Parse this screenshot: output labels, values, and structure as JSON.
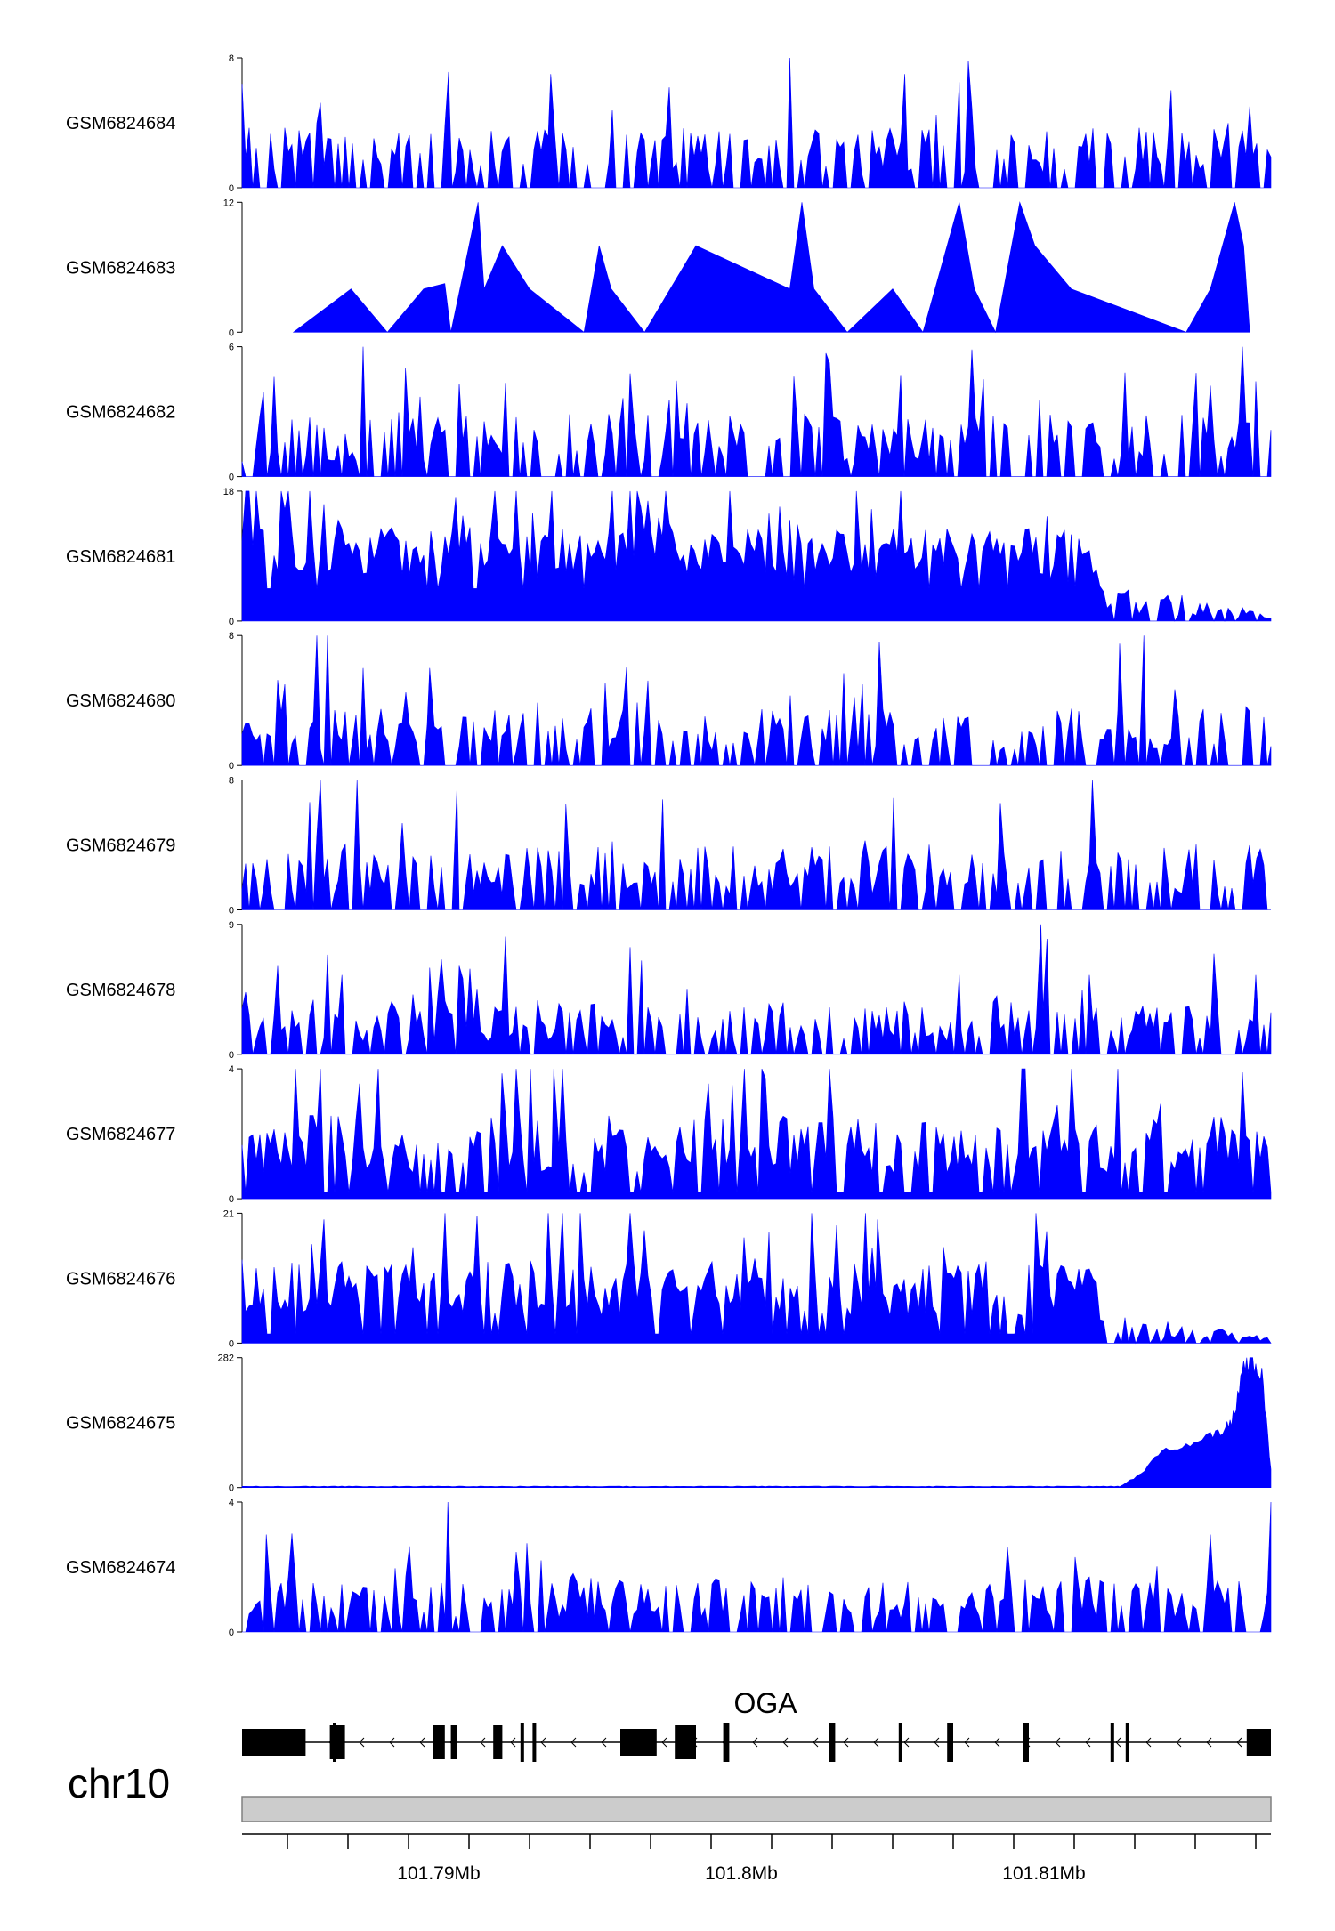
{
  "chart_data": {
    "type": "area",
    "style": {
      "fill_color": "#0000ff",
      "axis_color": "#000000",
      "ideogram_color": "#cccccc",
      "ideogram_border": "#808080"
    },
    "x_range": [
      101.7835,
      101.8175
    ],
    "x_ticks": [
      101.785,
      101.787,
      101.789,
      101.791,
      101.793,
      101.795,
      101.797,
      101.799,
      101.801,
      101.803,
      101.805,
      101.807,
      101.809,
      101.811,
      101.813,
      101.815,
      101.817
    ],
    "x_tick_labels": [
      {
        "x": 101.79,
        "label": "101.79Mb"
      },
      {
        "x": 101.8,
        "label": "101.8Mb"
      },
      {
        "x": 101.81,
        "label": "101.81Mb"
      }
    ],
    "tracks": [
      {
        "name": "GSM6824684",
        "ylim": [
          0,
          8
        ],
        "ytick_labels": [
          "0",
          "8"
        ],
        "profile": "sparse",
        "peaks": [
          [
            101.7937,
            7
          ],
          [
            101.8016,
            8
          ],
          [
            101.8054,
            7
          ],
          [
            101.8072,
            6.5
          ],
          [
            101.8142,
            6
          ],
          [
            101.8168,
            5
          ]
        ],
        "floor": 0,
        "density": 0.55,
        "mean": 2.2,
        "tail": null,
        "end_drop": false
      },
      {
        "name": "GSM6824683",
        "ylim": [
          0,
          12
        ],
        "ytick_labels": [
          "0",
          "12"
        ],
        "profile": "triangles",
        "coverage_start": 101.7852,
        "coverage_end": 101.8168,
        "anchors": [
          [
            101.7852,
            0
          ],
          [
            101.7871,
            4
          ],
          [
            101.7883,
            0
          ],
          [
            101.7895,
            4
          ],
          [
            101.7902,
            4.5
          ],
          [
            101.7904,
            0
          ],
          [
            101.7913,
            12
          ],
          [
            101.7915,
            4
          ],
          [
            101.7921,
            8
          ],
          [
            101.793,
            4
          ],
          [
            101.7948,
            0
          ],
          [
            101.7953,
            8
          ],
          [
            101.7957,
            4
          ],
          [
            101.7968,
            0
          ],
          [
            101.7985,
            8
          ],
          [
            101.8016,
            4
          ],
          [
            101.802,
            12
          ],
          [
            101.8024,
            4
          ],
          [
            101.8035,
            0
          ],
          [
            101.805,
            4
          ],
          [
            101.806,
            0
          ],
          [
            101.8072,
            12
          ],
          [
            101.8077,
            4
          ],
          [
            101.8084,
            0
          ],
          [
            101.8092,
            12
          ],
          [
            101.8097,
            8
          ],
          [
            101.8109,
            4
          ],
          [
            101.8147,
            0
          ],
          [
            101.8155,
            4
          ],
          [
            101.8163,
            12
          ],
          [
            101.8166,
            8
          ],
          [
            101.8168,
            0
          ]
        ]
      },
      {
        "name": "GSM6824682",
        "ylim": [
          0,
          6
        ],
        "ytick_labels": [
          "0",
          "6"
        ],
        "profile": "sparse",
        "peaks": [
          [
            101.7875,
            6
          ],
          [
            101.7889,
            5
          ],
          [
            101.808,
            4.5
          ],
          [
            101.8155,
            4.2
          ],
          [
            101.817,
            4.4
          ]
        ],
        "floor": 0,
        "density": 0.62,
        "mean": 1.7,
        "tail": null,
        "end_drop": false
      },
      {
        "name": "GSM6824681",
        "ylim": [
          0,
          18
        ],
        "ytick_labels": [
          "0",
          "18"
        ],
        "profile": "dense",
        "peaks": [
          [
            101.7931,
            15
          ],
          [
            101.8016,
            14
          ],
          [
            101.8038,
            18
          ],
          [
            101.8043,
            15.5
          ],
          [
            101.8101,
            14.5
          ],
          [
            101.8109,
            12
          ]
        ],
        "floor": 4.5,
        "density": 0.9,
        "mean": 9.5,
        "tail": {
          "start": 101.8118,
          "level": 4,
          "end_level": 1
        },
        "end_drop": false
      },
      {
        "name": "GSM6824680",
        "ylim": [
          0,
          8
        ],
        "ytick_labels": [
          "0",
          "8"
        ],
        "profile": "sparse",
        "peaks": [
          [
            101.7875,
            6
          ],
          [
            101.7897,
            6
          ],
          [
            101.804,
            5
          ],
          [
            101.8125,
            7.5
          ],
          [
            101.8133,
            8
          ]
        ],
        "floor": 0,
        "density": 0.55,
        "mean": 2.1,
        "tail": null,
        "end_drop": false
      },
      {
        "name": "GSM6824679",
        "ylim": [
          0,
          8
        ],
        "ytick_labels": [
          "0",
          "8"
        ],
        "profile": "sparse",
        "peaks": [
          [
            101.7873,
            8
          ],
          [
            101.7906,
            7.5
          ],
          [
            101.7942,
            6.5
          ],
          [
            101.7974,
            6.8
          ],
          [
            101.8116,
            8
          ]
        ],
        "floor": 0,
        "density": 0.6,
        "mean": 2.4,
        "tail": null,
        "end_drop": false
      },
      {
        "name": "GSM6824678",
        "ylim": [
          0,
          9
        ],
        "ytick_labels": [
          "0",
          "9"
        ],
        "profile": "sparse",
        "peaks": [
          [
            101.7868,
            5.5
          ],
          [
            101.7897,
            6
          ],
          [
            101.7967,
            6.5
          ],
          [
            101.8072,
            5.5
          ],
          [
            101.8099,
            9
          ],
          [
            101.8101,
            8
          ],
          [
            101.8115,
            5.5
          ],
          [
            101.817,
            5.5
          ]
        ],
        "floor": 0,
        "density": 0.6,
        "mean": 2.2,
        "tail": null,
        "end_drop": false
      },
      {
        "name": "GSM6824677",
        "ylim": [
          0,
          4
        ],
        "ytick_labels": [
          "0",
          "4"
        ],
        "profile": "dense",
        "peaks": [
          [
            101.788,
            4
          ],
          [
            101.7938,
            4
          ],
          [
            101.7997,
            3.5
          ],
          [
            101.8001,
            4
          ]
        ],
        "floor": 0.2,
        "density": 0.8,
        "mean": 1.6,
        "tail": null,
        "end_drop": false
      },
      {
        "name": "GSM6824676",
        "ylim": [
          0,
          21
        ],
        "ytick_labels": [
          "0",
          "21"
        ],
        "profile": "dense",
        "peaks": [
          [
            101.7858,
            16
          ],
          [
            101.8041,
            21
          ],
          [
            101.8045,
            20
          ],
          [
            101.806,
            12
          ]
        ],
        "floor": 1.5,
        "density": 0.85,
        "mean": 8.5,
        "tail": {
          "start": 101.8118,
          "level": 3.2,
          "end_level": 1
        },
        "end_drop": false
      },
      {
        "name": "GSM6824675",
        "ylim": [
          0,
          282
        ],
        "ytick_labels": [
          "0",
          "282"
        ],
        "profile": "promoter",
        "baseline": 2,
        "ramp_start": 101.8125,
        "ramp_points": [
          [
            101.8125,
            2
          ],
          [
            101.8132,
            30
          ],
          [
            101.8139,
            80
          ],
          [
            101.8147,
            95
          ],
          [
            101.8155,
            120
          ],
          [
            101.816,
            130
          ],
          [
            101.8163,
            160
          ],
          [
            101.8166,
            275
          ],
          [
            101.8169,
            282
          ],
          [
            101.8172,
            260
          ],
          [
            101.8175,
            40
          ]
        ]
      },
      {
        "name": "GSM6824674",
        "ylim": [
          0,
          4
        ],
        "ytick_labels": [
          "0",
          "4"
        ],
        "profile": "sparse",
        "peaks": [
          [
            101.7843,
            3
          ],
          [
            101.7903,
            4
          ],
          [
            101.8155,
            3
          ],
          [
            101.8175,
            4
          ]
        ],
        "floor": 0,
        "density": 0.65,
        "mean": 1.0,
        "tail": null,
        "end_drop": false
      }
    ],
    "gene_model": {
      "name": "OGA",
      "strand": "-",
      "start": 101.7835,
      "end": 101.8175,
      "exons": [
        [
          101.7835,
          101.7856,
          "utr"
        ],
        [
          101.7864,
          101.7869,
          "cds"
        ],
        [
          101.7865,
          101.7866,
          "tick"
        ],
        [
          101.7898,
          101.7902,
          "cds"
        ],
        [
          101.7904,
          101.7906,
          "cds"
        ],
        [
          101.7918,
          101.7921,
          "cds"
        ],
        [
          101.7927,
          101.7928,
          "tick"
        ],
        [
          101.7931,
          101.7932,
          "tick"
        ],
        [
          101.796,
          101.7972,
          "utr"
        ],
        [
          101.7978,
          101.7985,
          "cds"
        ],
        [
          101.7994,
          101.7996,
          "tick"
        ],
        [
          101.8029,
          101.8031,
          "tick"
        ],
        [
          101.8052,
          101.8053,
          "tick"
        ],
        [
          101.8068,
          101.807,
          "tick"
        ],
        [
          101.8093,
          101.8095,
          "tick"
        ],
        [
          101.8122,
          101.8123,
          "tick"
        ],
        [
          101.8127,
          101.8128,
          "tick"
        ],
        [
          101.8167,
          101.8175,
          "utr"
        ]
      ]
    },
    "chromosome": "chr10"
  }
}
